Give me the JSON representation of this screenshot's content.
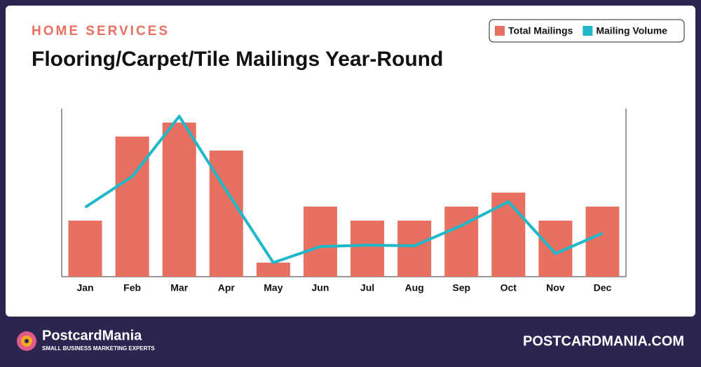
{
  "chart_data": {
    "type": "bar-line",
    "kicker": "HOME SERVICES",
    "title": "Flooring/Carpet/Tile Mailings Year-Round",
    "categories": [
      "Jan",
      "Feb",
      "Mar",
      "Apr",
      "May",
      "Jun",
      "Jul",
      "Aug",
      "Sep",
      "Oct",
      "Nov",
      "Dec"
    ],
    "series": [
      {
        "name": "Total Mailings",
        "color": "#e87060",
        "kind": "bar",
        "values": [
          4,
          10,
          11,
          9,
          1,
          5,
          4,
          4,
          5,
          6,
          4,
          5
        ]
      },
      {
        "name": "Mailing Volume",
        "color": "#1fb8c8",
        "kind": "line",
        "values": [
          4.95,
          7.15,
          11.45,
          6.15,
          1.0,
          2.15,
          2.25,
          2.2,
          3.65,
          5.35,
          1.65,
          3.1
        ]
      }
    ],
    "ylim": [
      0,
      12
    ],
    "legend": "top-right"
  },
  "footer": {
    "brand": "PostcardMania",
    "tagline": "SMALL BUSINESS MARKETING EXPERTS",
    "site": "POSTCARDMANIA.COM"
  }
}
